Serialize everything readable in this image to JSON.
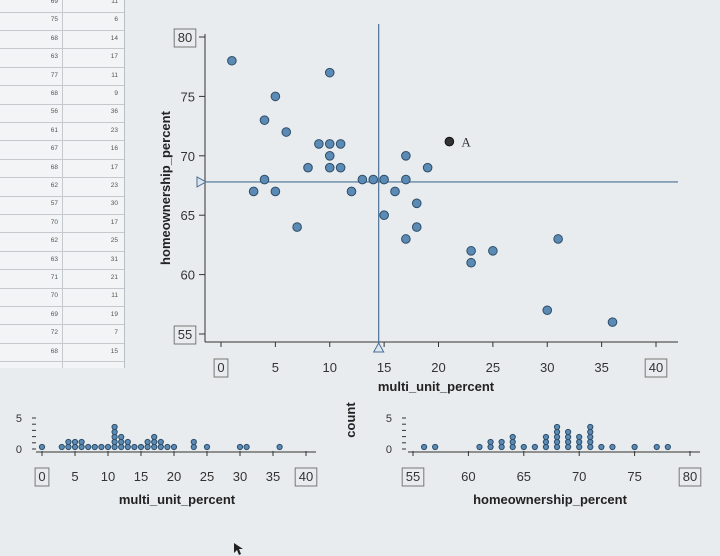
{
  "table": {
    "rows": [
      [
        "69",
        "11"
      ],
      [
        "75",
        "6"
      ],
      [
        "68",
        "14"
      ],
      [
        "63",
        "17"
      ],
      [
        "77",
        "11"
      ],
      [
        "68",
        "9"
      ],
      [
        "56",
        "36"
      ],
      [
        "61",
        "23"
      ],
      [
        "67",
        "16"
      ],
      [
        "68",
        "17"
      ],
      [
        "62",
        "23"
      ],
      [
        "57",
        "30"
      ],
      [
        "70",
        "17"
      ],
      [
        "62",
        "25"
      ],
      [
        "63",
        "31"
      ],
      [
        "71",
        "21"
      ],
      [
        "70",
        "11"
      ],
      [
        "69",
        "19"
      ],
      [
        "72",
        "7"
      ],
      [
        "68",
        "15"
      ]
    ]
  },
  "chart_data": [
    {
      "type": "scatter",
      "xlabel": "multi_unit_percent",
      "ylabel": "homeownership_percent",
      "xlim": [
        0,
        40
      ],
      "ylim": [
        55,
        80
      ],
      "xticks": [
        "0",
        "5",
        "10",
        "15",
        "20",
        "25",
        "30",
        "35",
        "40"
      ],
      "yticks": [
        "55",
        "60",
        "65",
        "70",
        "75",
        "80"
      ],
      "x_ref": 14.5,
      "y_ref": 67.8,
      "annotation": {
        "text": "A",
        "x": 21,
        "y": 71.2
      },
      "points": [
        [
          1,
          78
        ],
        [
          3,
          67
        ],
        [
          4,
          68
        ],
        [
          4,
          73
        ],
        [
          5,
          67
        ],
        [
          5,
          75
        ],
        [
          6,
          72
        ],
        [
          7,
          64
        ],
        [
          8,
          69
        ],
        [
          9,
          71
        ],
        [
          10,
          70
        ],
        [
          10,
          71
        ],
        [
          10,
          69
        ],
        [
          10,
          77
        ],
        [
          11,
          71
        ],
        [
          11,
          69
        ],
        [
          12,
          67
        ],
        [
          13,
          68
        ],
        [
          14,
          68
        ],
        [
          15,
          65
        ],
        [
          15,
          68
        ],
        [
          16,
          67
        ],
        [
          17,
          63
        ],
        [
          17,
          70
        ],
        [
          17,
          68
        ],
        [
          18,
          64
        ],
        [
          18,
          66
        ],
        [
          19,
          69
        ],
        [
          23,
          61
        ],
        [
          23,
          62
        ],
        [
          25,
          62
        ],
        [
          30,
          57
        ],
        [
          31,
          63
        ],
        [
          36,
          56
        ]
      ]
    },
    {
      "type": "dot",
      "xlabel": "multi_unit_percent",
      "ylabel": "",
      "xlim": [
        0,
        40
      ],
      "ylim": [
        0,
        5
      ],
      "xticks": [
        "0",
        "5",
        "10",
        "15",
        "20",
        "25",
        "30",
        "35",
        "40"
      ],
      "yticks": [
        "0",
        "5"
      ],
      "counts": [
        [
          0,
          1
        ],
        [
          3,
          1
        ],
        [
          4,
          2
        ],
        [
          5,
          2
        ],
        [
          6,
          2
        ],
        [
          7,
          1
        ],
        [
          8,
          1
        ],
        [
          9,
          1
        ],
        [
          10,
          1
        ],
        [
          11,
          5
        ],
        [
          12,
          3
        ],
        [
          13,
          2
        ],
        [
          14,
          1
        ],
        [
          15,
          1
        ],
        [
          16,
          2
        ],
        [
          17,
          3
        ],
        [
          18,
          2
        ],
        [
          19,
          1
        ],
        [
          20,
          1
        ],
        [
          23,
          2
        ],
        [
          25,
          1
        ],
        [
          30,
          1
        ],
        [
          31,
          1
        ],
        [
          36,
          1
        ]
      ]
    },
    {
      "type": "dot",
      "xlabel": "homeownership_percent",
      "ylabel": "count",
      "xlim": [
        55,
        80
      ],
      "ylim": [
        0,
        5
      ],
      "xticks": [
        "55",
        "60",
        "65",
        "70",
        "75",
        "80"
      ],
      "yticks": [
        "0",
        "5"
      ],
      "counts": [
        [
          56,
          1
        ],
        [
          57,
          1
        ],
        [
          61,
          1
        ],
        [
          62,
          2
        ],
        [
          63,
          2
        ],
        [
          64,
          3
        ],
        [
          65,
          1
        ],
        [
          66,
          1
        ],
        [
          67,
          3
        ],
        [
          68,
          5
        ],
        [
          69,
          4
        ],
        [
          70,
          3
        ],
        [
          71,
          5
        ],
        [
          72,
          1
        ],
        [
          73,
          1
        ],
        [
          75,
          1
        ],
        [
          77,
          1
        ],
        [
          78,
          1
        ]
      ]
    }
  ]
}
